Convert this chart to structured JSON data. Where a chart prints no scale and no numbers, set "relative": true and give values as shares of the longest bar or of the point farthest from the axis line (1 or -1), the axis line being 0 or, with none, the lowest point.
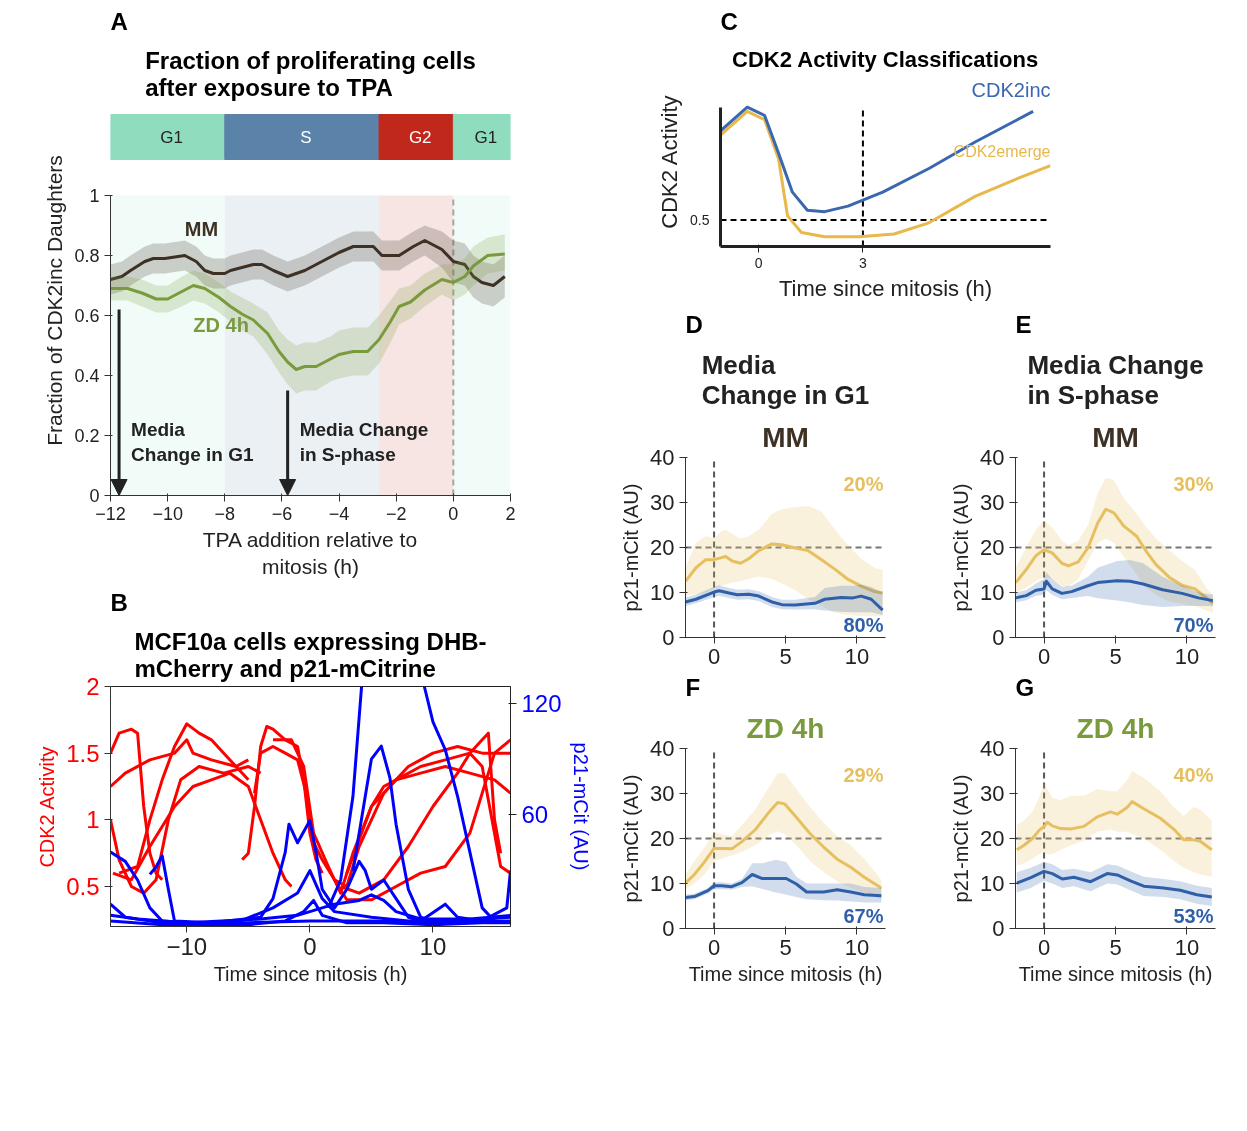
{
  "chart_data": [
    {
      "type": "line",
      "title": "Fraction of proliferating cells\nafter exposure to TPA",
      "xlabel": "TPA addition relative to\nmitosis (h)",
      "ylabel": "Fraction of CDK2inc Daughters",
      "xlim": [
        -12,
        2
      ],
      "xticks": [
        -12,
        -10,
        -8,
        -6,
        -4,
        -2,
        0,
        2
      ],
      "ylim": [
        0,
        1
      ],
      "yticks": [
        0,
        0.2,
        0.4,
        0.6,
        0.8,
        1
      ],
      "bands": [
        {
          "axis": "x",
          "from": -12,
          "to": -8,
          "label": "G1",
          "color": "#8fdcbf"
        },
        {
          "axis": "x",
          "from": -8,
          "to": -2.6,
          "label": "S",
          "color": "#5b82a8"
        },
        {
          "axis": "x",
          "from": -2.6,
          "to": 0,
          "label": "G2",
          "color": "#c0281c"
        },
        {
          "axis": "x",
          "from": 0,
          "to": 2,
          "label": "G1",
          "color": "#8fdcbf"
        }
      ],
      "ref_lines": [
        {
          "axis": "x",
          "value": 0,
          "color": "#aaaaaa",
          "line_style": "dashed"
        }
      ],
      "annotations": [
        "A",
        "Media\nChange in G1",
        "Media Change\nin S-phase"
      ],
      "series": [
        {
          "name": "MM",
          "color": "#3d3024",
          "x": [
            -12,
            -11.6,
            -11.3,
            -10.8,
            -10.5,
            -10.1,
            -9.4,
            -9,
            -8.7,
            -8.4,
            -8,
            -7.8,
            -7,
            -6.7,
            -6.3,
            -5.8,
            -5.2,
            -4.6,
            -4,
            -3.5,
            -3.2,
            -2.8,
            -2.5,
            -2.2,
            -1.9,
            -1.4,
            -1,
            -0.4,
            0,
            0.4,
            0.7,
            1,
            1.4,
            1.8
          ],
          "values": [
            0.72,
            0.73,
            0.75,
            0.78,
            0.79,
            0.79,
            0.8,
            0.78,
            0.75,
            0.74,
            0.74,
            0.75,
            0.77,
            0.77,
            0.75,
            0.73,
            0.75,
            0.78,
            0.81,
            0.83,
            0.83,
            0.83,
            0.8,
            0.8,
            0.8,
            0.83,
            0.85,
            0.82,
            0.78,
            0.77,
            0.73,
            0.71,
            0.7,
            0.73
          ],
          "lower": [
            0.67,
            0.68,
            0.7,
            0.73,
            0.74,
            0.74,
            0.75,
            0.73,
            0.7,
            0.69,
            0.69,
            0.7,
            0.72,
            0.72,
            0.7,
            0.68,
            0.7,
            0.73,
            0.76,
            0.78,
            0.78,
            0.78,
            0.75,
            0.75,
            0.75,
            0.78,
            0.8,
            0.76,
            0.71,
            0.7,
            0.66,
            0.64,
            0.63,
            0.66
          ],
          "upper": [
            0.77,
            0.78,
            0.8,
            0.83,
            0.84,
            0.84,
            0.85,
            0.83,
            0.8,
            0.79,
            0.79,
            0.8,
            0.82,
            0.82,
            0.8,
            0.78,
            0.8,
            0.83,
            0.86,
            0.88,
            0.88,
            0.88,
            0.85,
            0.85,
            0.85,
            0.88,
            0.9,
            0.88,
            0.85,
            0.84,
            0.8,
            0.78,
            0.77,
            0.8
          ]
        },
        {
          "name": "ZD 4h",
          "color": "#7a9a3e",
          "x": [
            -12,
            -11.4,
            -10.9,
            -10.4,
            -10,
            -9.5,
            -9.1,
            -8.7,
            -8.2,
            -7.8,
            -7.4,
            -7,
            -6.5,
            -6.1,
            -5.8,
            -5.5,
            -5.2,
            -4.8,
            -4.3,
            -4,
            -3.5,
            -3,
            -2.6,
            -2.2,
            -1.9,
            -1.5,
            -1,
            -0.4,
            0,
            0.4,
            0.7,
            1.2,
            1.8
          ],
          "values": [
            0.69,
            0.69,
            0.675,
            0.655,
            0.655,
            0.68,
            0.7,
            0.69,
            0.66,
            0.63,
            0.605,
            0.585,
            0.54,
            0.48,
            0.445,
            0.42,
            0.43,
            0.43,
            0.455,
            0.47,
            0.48,
            0.48,
            0.52,
            0.58,
            0.63,
            0.645,
            0.685,
            0.72,
            0.71,
            0.73,
            0.765,
            0.8,
            0.805
          ],
          "lower": [
            0.65,
            0.65,
            0.63,
            0.61,
            0.61,
            0.63,
            0.65,
            0.64,
            0.61,
            0.58,
            0.55,
            0.53,
            0.47,
            0.41,
            0.37,
            0.34,
            0.35,
            0.35,
            0.38,
            0.39,
            0.4,
            0.4,
            0.44,
            0.51,
            0.57,
            0.59,
            0.63,
            0.67,
            0.65,
            0.67,
            0.7,
            0.74,
            0.75
          ],
          "upper": [
            0.73,
            0.73,
            0.72,
            0.7,
            0.7,
            0.73,
            0.75,
            0.74,
            0.71,
            0.68,
            0.66,
            0.64,
            0.61,
            0.55,
            0.52,
            0.5,
            0.51,
            0.51,
            0.53,
            0.55,
            0.56,
            0.56,
            0.6,
            0.65,
            0.69,
            0.7,
            0.74,
            0.77,
            0.77,
            0.79,
            0.83,
            0.86,
            0.87
          ]
        }
      ]
    },
    {
      "type": "line",
      "title": "MCF10a cells expressing DHB-\nmCherry and p21-mCitrine",
      "xlabel": "Time since mitosis (h)",
      "ylabel": "CDK2 Activity",
      "y2label": "p21-mCit (AU)",
      "xlim": [
        -16.2,
        16.3
      ],
      "xticks": [
        -10,
        0,
        10
      ],
      "ylim": [
        0.2,
        2
      ],
      "yticks": [
        0.5,
        1,
        1.5,
        2
      ],
      "y2lim": [
        0,
        129
      ],
      "y2ticks": [
        60,
        120
      ],
      "annotations": [
        "B"
      ],
      "series": [
        {
          "color": "#ff0000",
          "x": [
            -16.2,
            -15.5,
            -14.5,
            -14,
            -13.5,
            -13,
            -12.5,
            -12
          ],
          "values": [
            1.5,
            1.65,
            1.68,
            1.65,
            1.1,
            0.75,
            0.6,
            0.55
          ]
        },
        {
          "color": "#ff0000",
          "x": [
            -16.2,
            -15,
            -13,
            -11,
            -10,
            -9.5,
            -8,
            -6,
            -5
          ],
          "values": [
            1.25,
            1.35,
            1.45,
            1.5,
            1.6,
            1.5,
            1.45,
            1.4,
            1.45
          ]
        },
        {
          "color": "#ff0000",
          "x": [
            -16.2,
            -15.5,
            -14.5,
            -13.5,
            -12.5,
            -11.5,
            -10.5,
            -9,
            -7,
            -5,
            -4
          ],
          "values": [
            1.0,
            0.7,
            0.5,
            0.45,
            0.55,
            1.0,
            1.3,
            1.4,
            1.35,
            1.4,
            1.35
          ]
        },
        {
          "color": "#ff0000",
          "x": [
            -15.5,
            -14,
            -13,
            -12,
            -11,
            -10,
            -9,
            -8,
            -7,
            -6,
            -5
          ],
          "values": [
            0.6,
            0.65,
            1.0,
            1.3,
            1.55,
            1.72,
            1.65,
            1.6,
            1.5,
            1.4,
            1.3
          ]
        },
        {
          "color": "#ff0000",
          "x": [
            -16,
            -14.5,
            -13,
            -11,
            -9.5,
            -8,
            -6.5,
            -5,
            -4,
            -3,
            -2,
            -1.5
          ],
          "values": [
            0.6,
            0.55,
            0.8,
            1.1,
            1.25,
            1.3,
            1.35,
            1.25,
            1.0,
            0.75,
            0.55,
            0.5
          ]
        },
        {
          "color": "#ff0000",
          "x": [
            -5.5,
            -5,
            -4.5,
            -4,
            -3.5,
            -3,
            -2,
            -1,
            -0.5,
            0,
            0.5,
            1
          ],
          "values": [
            0.7,
            0.75,
            1.1,
            1.55,
            1.7,
            1.68,
            1.6,
            1.55,
            1.3,
            0.9,
            0.7,
            0.6
          ]
        },
        {
          "color": "#ff0000",
          "x": [
            -4.5,
            -4,
            -3,
            -2,
            -1,
            -0.3,
            0.2,
            1,
            2,
            3,
            4,
            5,
            6,
            7,
            8,
            10,
            12,
            14,
            16.3
          ],
          "values": [
            1.2,
            1.5,
            1.55,
            1.5,
            1.45,
            1.2,
            0.85,
            0.7,
            0.55,
            0.5,
            0.8,
            1.0,
            1.2,
            1.3,
            1.4,
            1.5,
            1.55,
            1.5,
            1.5
          ]
        },
        {
          "color": "#ff0000",
          "x": [
            -3,
            -1.5,
            -0.5,
            0.3,
            1.5,
            2.5,
            3.5,
            5,
            7,
            9,
            11,
            13,
            14,
            14.5,
            15,
            15.5
          ],
          "values": [
            1.6,
            1.6,
            1.4,
            0.9,
            0.65,
            0.45,
            0.75,
            1.1,
            1.3,
            1.4,
            1.45,
            1.5,
            1.6,
            1.65,
            1.0,
            0.75
          ]
        },
        {
          "color": "#ff0000",
          "x": [
            2,
            3,
            5,
            7,
            9,
            11,
            13,
            14,
            15,
            16.3
          ],
          "values": [
            0.55,
            0.4,
            0.4,
            0.5,
            0.6,
            0.65,
            0.9,
            1.2,
            1.5,
            1.6
          ]
        },
        {
          "color": "#ff0000",
          "x": [
            2.5,
            4,
            6,
            8,
            10,
            12,
            13,
            14,
            15,
            15.5,
            16.3
          ],
          "values": [
            0.5,
            0.45,
            0.55,
            0.8,
            1.1,
            1.35,
            1.5,
            1.4,
            0.9,
            0.65,
            0.6
          ]
        },
        {
          "color": "#ff0000",
          "x": [
            3,
            5,
            6,
            7,
            9,
            11,
            13,
            15,
            16.3
          ],
          "values": [
            0.6,
            1.1,
            1.25,
            1.3,
            1.35,
            1.4,
            1.35,
            1.3,
            1.2
          ]
        },
        {
          "color": "#0000ff",
          "axis": "y2",
          "x": [
            1.5,
            2.5,
            3.5,
            4.2
          ],
          "values": [
            10,
            25,
            70,
            129
          ]
        },
        {
          "color": "#0000ff",
          "axis": "y2",
          "x": [
            9.3,
            10,
            11,
            12,
            13,
            14,
            15
          ],
          "values": [
            129,
            110,
            95,
            70,
            40,
            10,
            3
          ]
        },
        {
          "color": "#0000ff",
          "axis": "y2",
          "x": [
            3.5,
            4.5,
            5,
            5.8,
            6.5,
            7,
            8,
            9,
            10
          ],
          "values": [
            30,
            70,
            90,
            97,
            80,
            55,
            20,
            5,
            3
          ]
        },
        {
          "color": "#0000ff",
          "axis": "y2",
          "x": [
            -16.2,
            -15,
            -14,
            -13,
            -12,
            -10,
            -5,
            0,
            5,
            10,
            16.3
          ],
          "values": [
            40,
            35,
            25,
            10,
            3,
            2,
            2,
            3,
            3,
            2,
            3
          ]
        },
        {
          "color": "#0000ff",
          "axis": "y2",
          "x": [
            -13,
            -12.5,
            -12,
            -11.5,
            -11,
            -8,
            -4,
            -3,
            -2,
            -1.7,
            -1,
            0,
            0.5,
            1,
            2,
            3,
            4,
            4.5,
            5,
            6,
            7,
            8,
            9,
            11,
            12,
            14,
            16,
            16.3
          ],
          "values": [
            28,
            32,
            38,
            20,
            3,
            2,
            5,
            15,
            40,
            55,
            45,
            57,
            40,
            20,
            10,
            20,
            35,
            30,
            20,
            25,
            15,
            5,
            3,
            12,
            5,
            3,
            10,
            30
          ]
        },
        {
          "color": "#0000ff",
          "axis": "y2",
          "x": [
            -16.2,
            -15,
            -12,
            -6,
            -3,
            -1,
            0,
            1,
            2,
            5,
            8,
            12,
            16.3
          ],
          "values": [
            12,
            5,
            2,
            2,
            10,
            18,
            30,
            15,
            8,
            5,
            3,
            3,
            5
          ]
        },
        {
          "color": "#0000ff",
          "axis": "y2",
          "x": [
            -16.2,
            -12,
            -5,
            -2,
            -0.5,
            0.3,
            1,
            3,
            6,
            10,
            14,
            16.3
          ],
          "values": [
            3,
            1,
            1,
            3,
            8,
            14,
            6,
            2,
            2,
            1,
            2,
            2
          ]
        },
        {
          "color": "#0000ff",
          "axis": "y2",
          "x": [
            -16.2,
            -14,
            -10,
            -4,
            -1,
            0,
            2,
            4,
            5,
            6,
            7,
            9,
            13,
            16.3
          ],
          "values": [
            6,
            4,
            2,
            4,
            6,
            8,
            12,
            14,
            17,
            14,
            8,
            4,
            4,
            6
          ]
        }
      ]
    },
    {
      "type": "line",
      "relative": true,
      "title": "CDK2 Activity Classifications",
      "xlabel": "Time since mitosis (h)",
      "ylabel": "CDK2 Activity",
      "xlim": [
        -1.1,
        8.4
      ],
      "xticks": [
        0,
        3
      ],
      "ref_lines": [
        {
          "axis": "y",
          "value": 0.19,
          "color": "#000000",
          "line_style": "dashed"
        },
        {
          "axis": "x",
          "value": 3,
          "color": "#000000",
          "line_style": "dashed"
        }
      ],
      "annotations": [
        "C",
        "0.5"
      ],
      "series": [
        {
          "name": "CDK2emerge",
          "color": "#e8b84a",
          "x": [
            -1.1,
            -0.33,
            0.17,
            0.57,
            0.83,
            1.23,
            1.9,
            2.9,
            3.9,
            4.9,
            6.23,
            7.57,
            8.4
          ],
          "values": [
            0.8,
            0.97,
            0.91,
            0.63,
            0.22,
            0.1,
            0.07,
            0.07,
            0.09,
            0.17,
            0.36,
            0.5,
            0.58
          ]
        },
        {
          "name": "CDK2inc",
          "color": "#3a68b0",
          "x": [
            -1.1,
            -0.33,
            0.17,
            0.57,
            0.97,
            1.4,
            1.9,
            2.57,
            3.57,
            4.9,
            6.23,
            7.9
          ],
          "values": [
            0.83,
            1.0,
            0.94,
            0.67,
            0.39,
            0.26,
            0.25,
            0.29,
            0.39,
            0.56,
            0.75,
            0.97
          ]
        }
      ]
    },
    {
      "type": "line",
      "title": "MM",
      "subtitle": "Media\nChange in G1",
      "ylabel": "p21-mCit (AU)",
      "xlim": [
        -2,
        12
      ],
      "xticks": [
        0,
        5,
        10
      ],
      "ylim": [
        0,
        40
      ],
      "yticks": [
        0,
        10,
        20,
        30,
        40
      ],
      "ref_lines": [
        {
          "axis": "x",
          "value": 0,
          "color": "#555555",
          "line_style": "dashed"
        },
        {
          "axis": "y",
          "value": 20,
          "color": "#777777",
          "line_style": "dashed"
        }
      ],
      "annotations": [
        "D"
      ],
      "series": [
        {
          "name": "20%",
          "color": "#e6c060",
          "x": [
            -2,
            -1.27,
            -0.58,
            0,
            0.46,
            0.81,
            1.27,
            1.85,
            2.43,
            3.13,
            4.05,
            4.75,
            5.67,
            6.6,
            7.52,
            8.45,
            9.38,
            10.3,
            11.23,
            11.8
          ],
          "values": [
            12.5,
            15.5,
            17.3,
            17.3,
            17.7,
            18,
            17,
            16.5,
            17.5,
            19.3,
            20.8,
            20.6,
            19.9,
            19.3,
            17.3,
            15.2,
            12.9,
            11.4,
            10.2,
            9.9
          ],
          "lower": [
            9.5,
            9.5,
            10,
            11,
            11.5,
            11.8,
            12.2,
            12.5,
            13,
            13.5,
            13,
            12,
            10.5,
            8.5,
            7,
            5.5,
            5,
            4.8,
            4.7,
            4.7
          ],
          "upper": [
            15.5,
            21,
            22.5,
            22,
            23.5,
            24,
            23,
            22,
            22.5,
            24,
            27.5,
            28.5,
            29,
            29.2,
            28,
            24,
            20.5,
            17.5,
            15.5,
            15
          ]
        },
        {
          "name": "80%",
          "color": "#2f5fa8",
          "x": [
            -2,
            -1.27,
            0,
            0.35,
            1.04,
            1.62,
            2.43,
            3.13,
            4.05,
            4.75,
            5.67,
            7.06,
            7.75,
            8.91,
            9.72,
            10.3,
            11,
            11.8
          ],
          "values": [
            7.9,
            8.5,
            10.1,
            10.4,
            9.9,
            9.5,
            9.6,
            9.2,
            7.9,
            7.3,
            7.2,
            7.6,
            8.5,
            8.9,
            8.8,
            9.2,
            8.5,
            6.1
          ],
          "lower": [
            7,
            7.6,
            9,
            9.3,
            8.8,
            8.4,
            8.5,
            8.1,
            6.8,
            6.3,
            6.2,
            6.3,
            6,
            5.7,
            5.6,
            5.6,
            5.6,
            5
          ],
          "upper": [
            8.9,
            9.5,
            11.3,
            11.6,
            11,
            10.6,
            10.7,
            10.3,
            9,
            8.4,
            8.4,
            9,
            11,
            11.5,
            11.5,
            11.8,
            11.2,
            10
          ]
        }
      ]
    },
    {
      "type": "line",
      "title": "MM",
      "subtitle": "Media Change\nin S-phase",
      "ylabel": "p21-mCit (AU)",
      "xlim": [
        -2,
        12
      ],
      "xticks": [
        0,
        5,
        10
      ],
      "ylim": [
        0,
        40
      ],
      "yticks": [
        0,
        10,
        20,
        30,
        40
      ],
      "ref_lines": [
        {
          "axis": "x",
          "value": 0,
          "color": "#555555",
          "line_style": "dashed"
        },
        {
          "axis": "y",
          "value": 20,
          "color": "#777777",
          "line_style": "dashed"
        }
      ],
      "annotations": [
        "E"
      ],
      "series": [
        {
          "name": "30%",
          "color": "#e6c060",
          "x": [
            -1.98,
            -1.25,
            -0.57,
            0,
            0.57,
            1.25,
            1.7,
            2.39,
            3.07,
            3.75,
            4.32,
            4.89,
            5.57,
            6.48,
            7.16,
            7.84,
            8.75,
            9.66,
            10.57,
            11.36,
            11.82
          ],
          "values": [
            12.2,
            15.1,
            18.2,
            19.5,
            18.8,
            16.5,
            15.9,
            16.8,
            19.9,
            25.4,
            28.5,
            27.7,
            24.8,
            22.5,
            19.1,
            16.2,
            13.4,
            11.6,
            10.8,
            8.8,
            7.6
          ],
          "lower": [
            10,
            11,
            12.5,
            13.5,
            13,
            11.5,
            11.3,
            13,
            17,
            21,
            22,
            21,
            18,
            14,
            11,
            9.5,
            8,
            7.5,
            7,
            6,
            5.5
          ],
          "upper": [
            15.5,
            20,
            24,
            26,
            24.5,
            21.5,
            20.5,
            21.5,
            25,
            32,
            35.5,
            35,
            31,
            27.5,
            24.5,
            22,
            19.5,
            17,
            15,
            11,
            9.5
          ]
        },
        {
          "name": "70%",
          "color": "#2f5fa8",
          "x": [
            -1.98,
            -1.25,
            -0.57,
            0,
            0.16,
            0.57,
            1.25,
            1.93,
            3.07,
            3.75,
            5.11,
            6.02,
            6.93,
            8.3,
            9.66,
            10.8,
            11.82
          ],
          "values": [
            8.8,
            9.3,
            10.5,
            10.8,
            12.5,
            10.8,
            9.8,
            10.2,
            11.5,
            12.2,
            12.6,
            12.5,
            11.9,
            10.6,
            9.8,
            8.8,
            8.2
          ],
          "lower": [
            7.8,
            8.3,
            9.3,
            9.5,
            10.5,
            9.5,
            8.5,
            8.8,
            9.2,
            8.7,
            8.2,
            7.8,
            7.2,
            6.8,
            7,
            7,
            7
          ],
          "upper": [
            10,
            10.5,
            12,
            13,
            14.5,
            13,
            11.3,
            11.5,
            13.5,
            15.5,
            17,
            17.2,
            16.5,
            13.5,
            11.5,
            10,
            9.5
          ]
        }
      ]
    },
    {
      "type": "line",
      "title": "ZD 4h",
      "xlabel": "Time since mitosis (h)",
      "ylabel": "p21-mCit (AU)",
      "xlim": [
        -2,
        12
      ],
      "xticks": [
        0,
        5,
        10
      ],
      "ylim": [
        0,
        40
      ],
      "yticks": [
        0,
        10,
        20,
        30,
        40
      ],
      "ref_lines": [
        {
          "axis": "x",
          "value": 0,
          "color": "#555555",
          "line_style": "dashed"
        },
        {
          "axis": "y",
          "value": 20,
          "color": "#777777",
          "line_style": "dashed"
        }
      ],
      "annotations": [
        "F"
      ],
      "series": [
        {
          "name": "29%",
          "color": "#e6c060",
          "x": [
            -2,
            -1.38,
            -0.67,
            0,
            0.52,
            1.24,
            1.95,
            2.9,
            3.86,
            4.45,
            4.93,
            5.76,
            6.71,
            7.67,
            8.62,
            9.57,
            10.52,
            11.71
          ],
          "values": [
            10.1,
            12,
            14.8,
            17.8,
            17.8,
            17.7,
            19.3,
            22,
            25.9,
            28,
            27.7,
            24.7,
            21.1,
            18.1,
            15.4,
            13.6,
            11.4,
            9
          ],
          "lower": [
            8.7,
            10,
            12,
            15,
            15.5,
            16.2,
            17,
            18.5,
            20.8,
            21.6,
            21,
            18.5,
            15,
            12.5,
            10.5,
            9,
            8,
            6.5
          ],
          "upper": [
            12,
            15,
            18,
            21.5,
            21,
            20.5,
            23,
            26.5,
            31.5,
            34.5,
            34.5,
            31,
            27,
            23.5,
            20.5,
            18.5,
            15.5,
            10.8
          ]
        },
        {
          "name": "67%",
          "color": "#2f5fa8",
          "x": [
            -2,
            -1.38,
            -0.43,
            0,
            0.52,
            1.24,
            1.95,
            2.67,
            3.38,
            4.33,
            5.05,
            5.76,
            6.48,
            7.67,
            8.62,
            9.57,
            10.52,
            11.71
          ],
          "values": [
            6.9,
            7.1,
            8.4,
            9.5,
            9.5,
            9.3,
            10.2,
            12,
            11.1,
            11.1,
            11.1,
            9.9,
            8.1,
            8.1,
            8.6,
            8.1,
            7.5,
            7.3
          ],
          "lower": [
            6.3,
            6.5,
            7.8,
            8.7,
            8.7,
            8.6,
            9.2,
            9.4,
            8.8,
            8,
            7.5,
            7,
            6.5,
            6.3,
            6.2,
            6,
            5.8,
            5.8
          ],
          "upper": [
            7.5,
            7.7,
            9,
            10.3,
            10.3,
            10,
            11,
            14.5,
            14.5,
            15.3,
            14.8,
            11.5,
            10,
            10,
            10,
            10,
            9.2,
            9
          ]
        }
      ]
    },
    {
      "type": "line",
      "title": "ZD 4h",
      "xlabel": "Time since mitosis (h)",
      "ylabel": "p21-mCit (AU)",
      "xlim": [
        -2,
        12
      ],
      "xticks": [
        0,
        5,
        10
      ],
      "ylim": [
        0,
        40
      ],
      "yticks": [
        0,
        10,
        20,
        30,
        40
      ],
      "ref_lines": [
        {
          "axis": "x",
          "value": 0,
          "color": "#555555",
          "line_style": "dashed"
        },
        {
          "axis": "y",
          "value": 20,
          "color": "#777777",
          "line_style": "dashed"
        }
      ],
      "annotations": [
        "G"
      ],
      "series": [
        {
          "name": "40%",
          "color": "#e6c060",
          "x": [
            -1.91,
            -1.4,
            -0.81,
            -0.35,
            0,
            0.23,
            0.58,
            1.16,
            1.86,
            2.79,
            3.72,
            4.65,
            5.12,
            5.81,
            6.16,
            6.98,
            8.14,
            9.07,
            9.77,
            10.47,
            10.93,
            11.74
          ],
          "values": [
            17.5,
            18.5,
            20,
            21.8,
            22.7,
            23.6,
            22.8,
            22.2,
            22.1,
            22.7,
            24.8,
            25.9,
            25.4,
            26.9,
            28.2,
            26.6,
            24.5,
            22.1,
            19.7,
            19.7,
            19.4,
            17.5
          ],
          "lower": [
            14,
            14.5,
            15.5,
            16.5,
            17,
            16.5,
            16.5,
            17.5,
            18.5,
            19.5,
            21.5,
            22,
            21.5,
            21.5,
            21,
            20,
            17.5,
            15,
            13.5,
            12.5,
            12,
            11.5
          ],
          "upper": [
            23,
            24,
            26,
            29,
            32.5,
            31,
            29,
            28.5,
            29.5,
            29.5,
            31,
            30.5,
            30.5,
            33,
            35,
            33.5,
            30.5,
            27,
            25,
            27,
            26.5,
            24
          ]
        },
        {
          "name": "53%",
          "color": "#2f5fa8",
          "x": [
            -1.91,
            -0.93,
            0,
            0.58,
            1.28,
            2.09,
            3.26,
            4.42,
            5.12,
            6.05,
            6.98,
            8.37,
            9.53,
            10.7,
            11.74
          ],
          "values": [
            10.1,
            11.3,
            12.7,
            12.2,
            11,
            11.4,
            10.4,
            12.2,
            11.9,
            10.6,
            9.4,
            9,
            8.5,
            7.5,
            7
          ],
          "lower": [
            8,
            9,
            10.6,
            10,
            9,
            9.4,
            8.3,
            10,
            9.8,
            8.5,
            7.2,
            7,
            6.5,
            5.5,
            5
          ],
          "upper": [
            12.5,
            13.5,
            14.8,
            14.3,
            13,
            13.3,
            12.5,
            14.3,
            14,
            12.7,
            11.5,
            11,
            10.5,
            9.5,
            9
          ]
        }
      ]
    }
  ]
}
